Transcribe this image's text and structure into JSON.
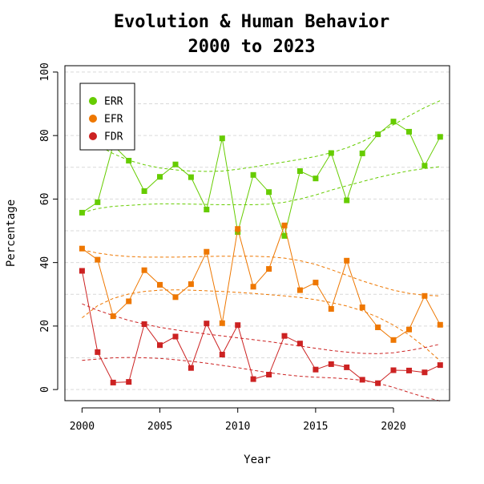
{
  "chart_data": {
    "type": "line",
    "title": "Evolution & Human Behavior",
    "subtitle": "2000 to 2023",
    "xlabel": "Year",
    "ylabel": "Percentage",
    "xlim": [
      1998.9,
      2023.6
    ],
    "ylim": [
      -3.5,
      102
    ],
    "x_ticks": [
      2000,
      2005,
      2010,
      2015,
      2020
    ],
    "y_ticks": [
      0,
      20,
      40,
      60,
      80,
      100
    ],
    "grid": true,
    "legend_position": "top-left",
    "x": [
      2000,
      2001,
      2002,
      2003,
      2004,
      2005,
      2006,
      2007,
      2008,
      2009,
      2010,
      2011,
      2012,
      2013,
      2014,
      2015,
      2016,
      2017,
      2018,
      2019,
      2020,
      2021,
      2022,
      2023
    ],
    "series": [
      {
        "name": "ERR",
        "color": "#66cc00",
        "values": [
          55.7,
          59.0,
          77.0,
          72.1,
          62.5,
          67.0,
          70.9,
          66.9,
          56.7,
          79.1,
          49.6,
          67.6,
          62.2,
          48.4,
          68.8,
          66.5,
          74.5,
          59.6,
          74.4,
          80.4,
          84.4,
          81.2,
          70.5,
          79.6
        ],
        "band_lower": [
          55.7,
          57.0,
          57.7,
          58.0,
          58.3,
          58.5,
          58.5,
          58.4,
          58.3,
          58.2,
          58.2,
          58.2,
          58.4,
          59.0,
          60.0,
          61.3,
          62.8,
          64.2,
          65.5,
          66.8,
          67.9,
          68.9,
          69.6,
          70.2
        ],
        "band_upper": [
          80.0,
          77.0,
          74.3,
          72.2,
          70.8,
          69.8,
          69.2,
          68.8,
          68.7,
          68.8,
          69.4,
          70.1,
          70.9,
          71.7,
          72.5,
          73.4,
          74.6,
          76.1,
          78.1,
          80.6,
          83.4,
          86.2,
          88.8,
          91.0
        ]
      },
      {
        "name": "EFR",
        "color": "#ee7700",
        "values": [
          44.4,
          40.9,
          23.1,
          27.8,
          37.6,
          33.0,
          29.1,
          33.2,
          43.4,
          20.9,
          50.6,
          32.4,
          38.0,
          51.7,
          31.3,
          33.7,
          25.4,
          40.6,
          25.9,
          19.6,
          15.6,
          18.9,
          29.5,
          20.4
        ],
        "band_lower": [
          22.6,
          26.4,
          28.7,
          30.1,
          30.9,
          31.3,
          31.4,
          31.3,
          31.1,
          30.9,
          30.6,
          30.3,
          29.9,
          29.5,
          29.0,
          28.3,
          27.4,
          26.3,
          24.8,
          22.8,
          20.3,
          17.2,
          13.4,
          9.0
        ],
        "band_upper": [
          44.0,
          43.0,
          42.3,
          41.9,
          41.7,
          41.7,
          41.7,
          41.8,
          41.9,
          42.0,
          42.0,
          42.0,
          41.8,
          41.4,
          40.6,
          39.4,
          37.8,
          36.0,
          34.2,
          32.7,
          31.3,
          30.3,
          29.7,
          29.5
        ]
      },
      {
        "name": "FDR",
        "color": "#cc2222",
        "values": [
          37.4,
          11.8,
          2.2,
          2.4,
          20.6,
          14.0,
          16.7,
          6.8,
          20.8,
          11.0,
          20.3,
          3.3,
          4.7,
          16.9,
          14.5,
          6.3,
          8.0,
          7.0,
          3.1,
          2.0,
          6.1,
          6.0,
          5.4,
          7.7
        ],
        "band_lower": [
          9.2,
          9.6,
          10.0,
          10.1,
          10.0,
          9.8,
          9.4,
          8.9,
          8.3,
          7.6,
          6.9,
          6.1,
          5.3,
          4.7,
          4.2,
          3.9,
          3.7,
          3.4,
          2.9,
          2.0,
          0.7,
          -0.9,
          -2.4,
          -3.6
        ],
        "band_upper": [
          27.0,
          25.0,
          23.3,
          21.8,
          20.6,
          19.6,
          18.8,
          18.1,
          17.5,
          16.9,
          16.3,
          15.7,
          15.1,
          14.4,
          13.7,
          13.0,
          12.3,
          11.8,
          11.4,
          11.3,
          11.6,
          12.3,
          13.2,
          14.3
        ]
      }
    ]
  }
}
